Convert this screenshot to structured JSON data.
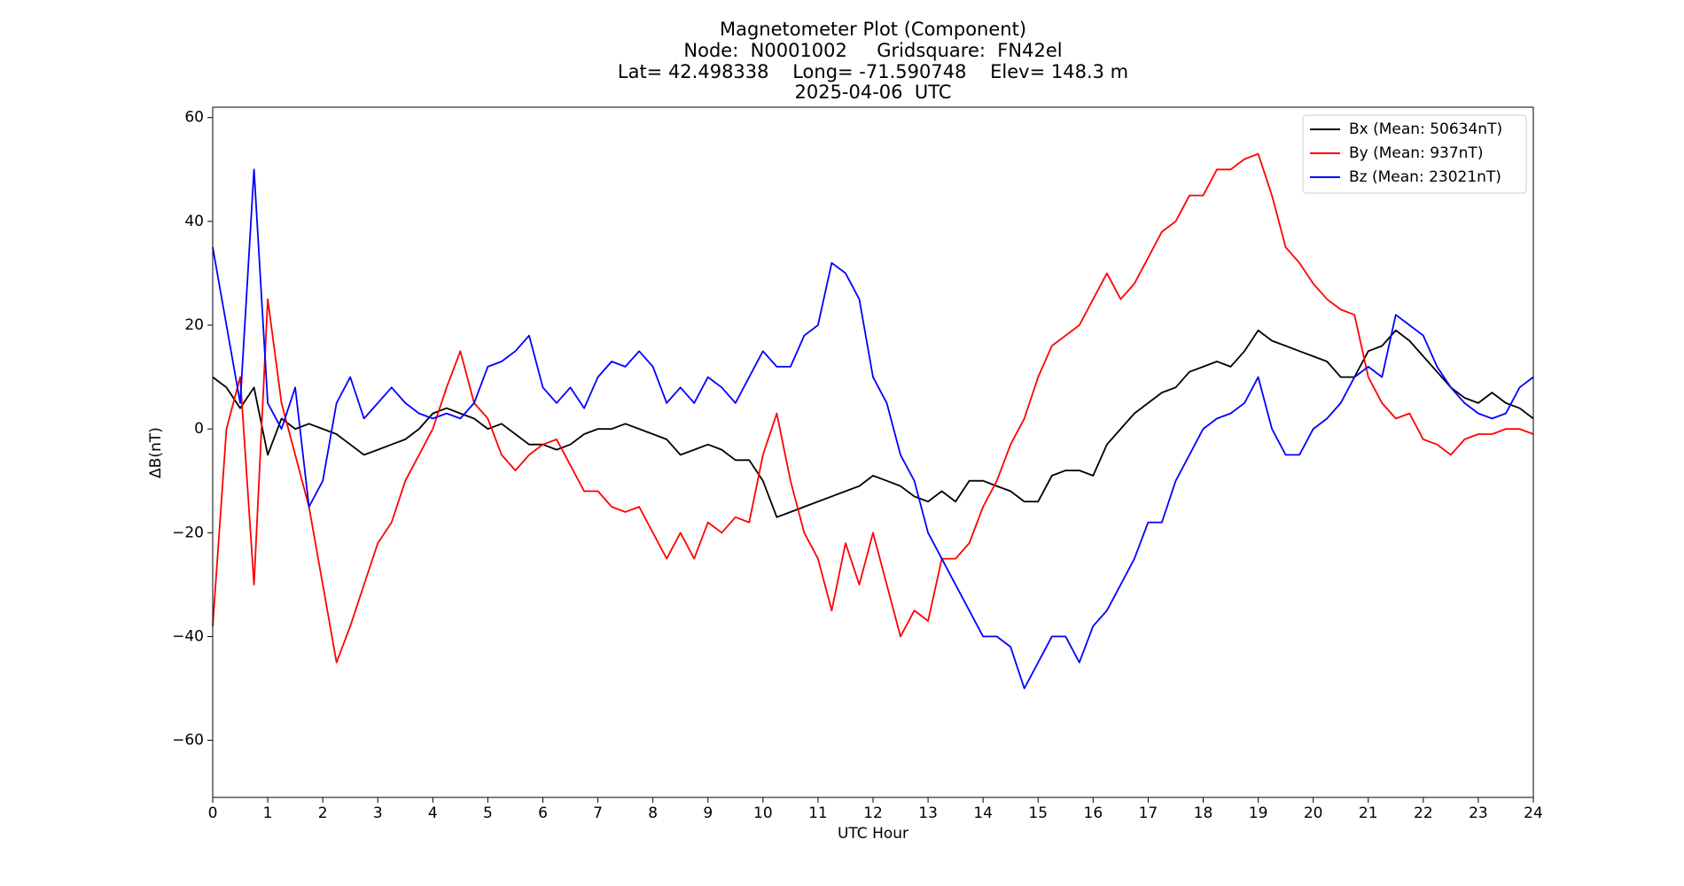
{
  "chart_data": {
    "type": "line",
    "title": [
      "Magnetometer Plot (Component)",
      "Node:  N0001002     Gridsquare:  FN42el",
      "Lat= 42.498338    Long= -71.590748    Elev= 148.3 m",
      "2025-04-06  UTC"
    ],
    "xlabel": "UTC Hour",
    "ylabel": "ΔB(nT)",
    "xlim": [
      0,
      24
    ],
    "ylim": [
      -71,
      62
    ],
    "xticks": [
      0,
      1,
      2,
      3,
      4,
      5,
      6,
      7,
      8,
      9,
      10,
      11,
      12,
      13,
      14,
      15,
      16,
      17,
      18,
      19,
      20,
      21,
      22,
      23,
      24
    ],
    "yticks": [
      {
        "value": -60,
        "label": "−60"
      },
      {
        "value": -40,
        "label": "−40"
      },
      {
        "value": -20,
        "label": "−20"
      },
      0,
      20,
      40,
      60
    ],
    "legend": "upper right",
    "x": [
      0,
      0.25,
      0.5,
      0.75,
      1,
      1.25,
      1.5,
      1.75,
      2,
      2.25,
      2.5,
      2.75,
      3,
      3.25,
      3.5,
      3.75,
      4,
      4.25,
      4.5,
      4.75,
      5,
      5.25,
      5.5,
      5.75,
      6,
      6.25,
      6.5,
      6.75,
      7,
      7.25,
      7.5,
      7.75,
      8,
      8.25,
      8.5,
      8.75,
      9,
      9.25,
      9.5,
      9.75,
      10,
      10.25,
      10.5,
      10.75,
      11,
      11.25,
      11.5,
      11.75,
      12,
      12.25,
      12.5,
      12.75,
      13,
      13.25,
      13.5,
      13.75,
      14,
      14.25,
      14.5,
      14.75,
      15,
      15.25,
      15.5,
      15.75,
      16,
      16.25,
      16.5,
      16.75,
      17,
      17.25,
      17.5,
      17.75,
      18,
      18.25,
      18.5,
      18.75,
      19,
      19.25,
      19.5,
      19.75,
      20,
      20.25,
      20.5,
      20.75,
      21,
      21.25,
      21.5,
      21.75,
      22,
      22.25,
      22.5,
      22.75,
      23,
      23.25,
      23.5,
      23.75,
      24
    ],
    "series": [
      {
        "name": "Bx (Mean: 50634nT)",
        "color": "#000000",
        "values": [
          10,
          8,
          4,
          8,
          -5,
          2,
          0,
          1,
          0,
          -1,
          -3,
          -5,
          -4,
          -3,
          -2,
          0,
          3,
          4,
          3,
          2,
          0,
          1,
          -1,
          -3,
          -3,
          -4,
          -3,
          -1,
          0,
          0,
          1,
          0,
          -1,
          -2,
          -5,
          -4,
          -3,
          -4,
          -6,
          -6,
          -10,
          -17,
          -16,
          -15,
          -14,
          -13,
          -12,
          -11,
          -9,
          -10,
          -11,
          -13,
          -14,
          -12,
          -14,
          -10,
          -10,
          -11,
          -12,
          -14,
          -14,
          -9,
          -8,
          -8,
          -9,
          -3,
          0,
          3,
          5,
          7,
          8,
          11,
          12,
          13,
          12,
          15,
          19,
          17,
          16,
          15,
          14,
          13,
          10,
          10,
          15,
          16,
          19,
          17,
          14,
          11,
          8,
          6,
          5,
          7,
          5,
          4,
          2
        ]
      },
      {
        "name": "By (Mean: 937nT)",
        "color": "#ff0000",
        "values": [
          -38,
          0,
          10,
          -30,
          25,
          5,
          -5,
          -15,
          -30,
          -45,
          -38,
          -30,
          -22,
          -18,
          -10,
          -5,
          0,
          8,
          15,
          5,
          2,
          -5,
          -8,
          -5,
          -3,
          -2,
          -7,
          -12,
          -12,
          -15,
          -16,
          -15,
          -20,
          -25,
          -20,
          -25,
          -18,
          -20,
          -17,
          -18,
          -5,
          3,
          -10,
          -20,
          -25,
          -35,
          -22,
          -30,
          -20,
          -30,
          -40,
          -35,
          -37,
          -25,
          -25,
          -22,
          -15,
          -10,
          -3,
          2,
          10,
          16,
          18,
          20,
          25,
          30,
          25,
          28,
          33,
          38,
          40,
          45,
          45,
          50,
          50,
          52,
          53,
          45,
          35,
          32,
          28,
          25,
          23,
          22,
          10,
          5,
          2,
          3,
          -2,
          -3,
          -5,
          -2,
          -1,
          -1,
          0,
          0,
          -1
        ]
      },
      {
        "name": "Bz (Mean: 23021nT)",
        "color": "#0000ff",
        "values": [
          35,
          20,
          5,
          50,
          5,
          0,
          8,
          -15,
          -10,
          5,
          10,
          2,
          5,
          8,
          5,
          3,
          2,
          3,
          2,
          5,
          12,
          13,
          15,
          18,
          8,
          5,
          8,
          4,
          10,
          13,
          12,
          15,
          12,
          5,
          8,
          5,
          10,
          8,
          5,
          10,
          15,
          12,
          12,
          18,
          20,
          32,
          30,
          25,
          10,
          5,
          -5,
          -10,
          -20,
          -25,
          -30,
          -35,
          -40,
          -40,
          -42,
          -50,
          -45,
          -40,
          -40,
          -45,
          -38,
          -35,
          -30,
          -25,
          -18,
          -18,
          -10,
          -5,
          0,
          2,
          3,
          5,
          10,
          0,
          -5,
          -5,
          0,
          2,
          5,
          10,
          12,
          10,
          22,
          20,
          18,
          12,
          8,
          5,
          3,
          2,
          3,
          8,
          10
        ]
      }
    ]
  }
}
